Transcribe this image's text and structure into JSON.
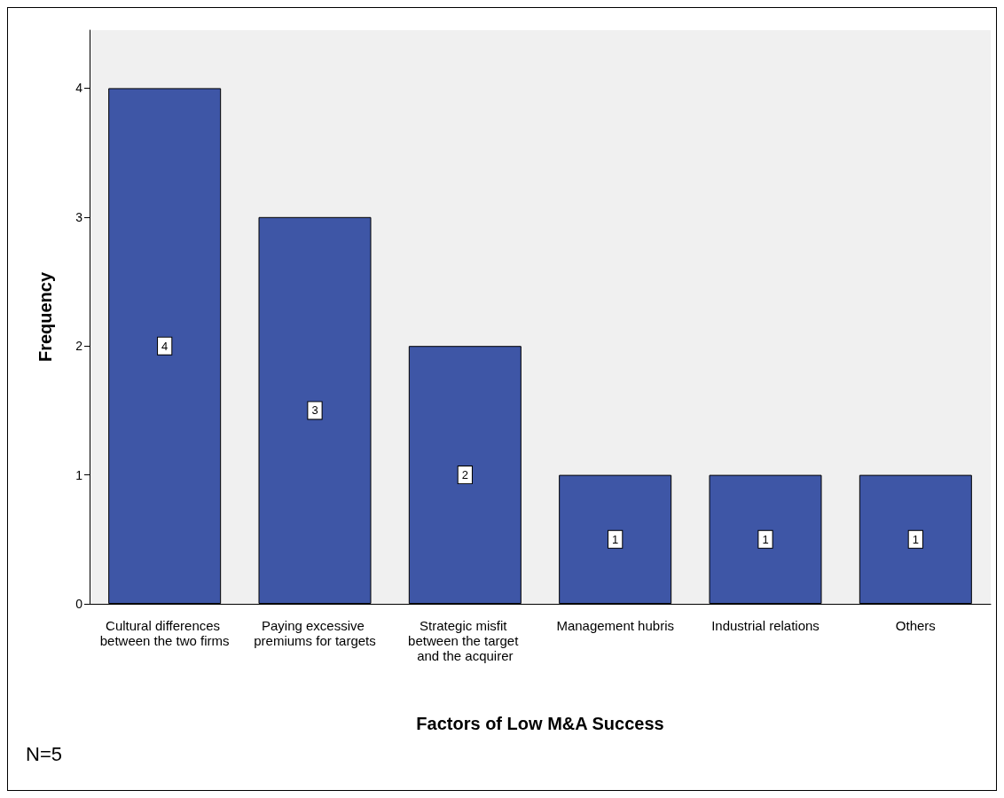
{
  "chart_data": {
    "type": "bar",
    "xlabel": "Factors of Low M&A Success",
    "ylabel": "Frequency",
    "categories": [
      "Cultural differences between the two firms",
      "Paying excessive premiums for targets",
      "Strategic misfit between the target and the acquirer",
      "Management hubris",
      "Industrial relations",
      "Others"
    ],
    "values": [
      4,
      3,
      2,
      1,
      1,
      1
    ],
    "color": "#3e56a6",
    "ylim": [
      0,
      4.45
    ],
    "yticks": [
      0,
      1,
      2,
      3,
      4
    ],
    "data_labels": true,
    "annotations": [
      "N=5"
    ]
  }
}
